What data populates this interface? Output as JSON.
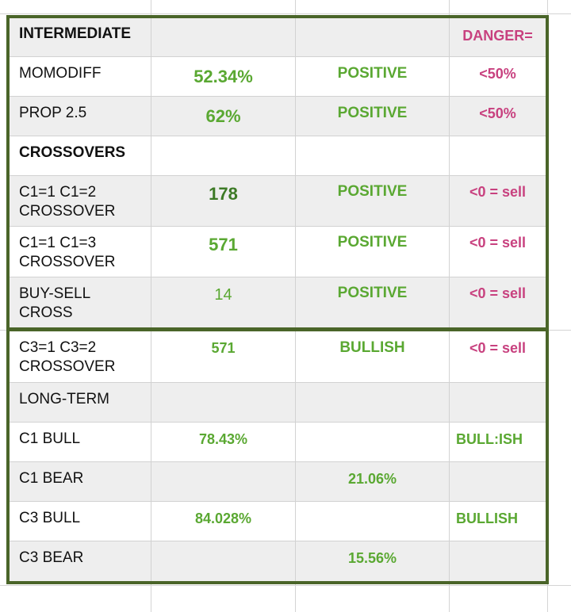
{
  "section_rows": [
    {
      "label": "INTERMEDIATE",
      "value": "",
      "status": "",
      "threshold": "DANGER="
    },
    {
      "label": "MOMODIFF",
      "value": "52.34%",
      "status": "POSITIVE",
      "threshold": "<50%"
    },
    {
      "label": "PROP 2.5",
      "value": "62%",
      "status": "POSITIVE",
      "threshold": "<50%"
    },
    {
      "label": "CROSSOVERS",
      "value": "",
      "status": "",
      "threshold": ""
    },
    {
      "label_line1": "C1=1 C1=2",
      "label_line2": "CROSSOVER",
      "value": "178",
      "status": "POSITIVE",
      "threshold": "<0 = sell"
    },
    {
      "label_line1": "C1=1 C1=3",
      "label_line2": "CROSSOVER",
      "value": "571",
      "status": "POSITIVE",
      "threshold": "<0 = sell"
    },
    {
      "label_line1": "BUY-SELL",
      "label_line2": "CROSS",
      "value": "14",
      "status": "POSITIVE",
      "threshold": "<0 = sell"
    }
  ],
  "lower_rows": [
    {
      "label_line1": "C3=1 C3=2",
      "label_line2": "CROSSOVER",
      "value": "571",
      "status": "BULLISH",
      "threshold": "<0 = sell"
    },
    {
      "label": "LONG-TERM",
      "value": "",
      "status": "",
      "threshold": ""
    },
    {
      "label": "C1 BULL",
      "value": "78.43%",
      "status": "",
      "threshold": "BULL:ISH"
    },
    {
      "label": "C1 BEAR",
      "value": "",
      "status": "21.06%",
      "threshold": ""
    },
    {
      "label": "C3 BULL",
      "value": "84.028%",
      "status": "",
      "threshold": "BULLISH"
    },
    {
      "label": "C3 BEAR",
      "value": "",
      "status": "15.56%",
      "threshold": ""
    }
  ],
  "colors": {
    "outline": "#4a6529",
    "green_text": "#5aa832",
    "pink_text": "#c8417f",
    "grey_fill": "#eeeeee"
  }
}
